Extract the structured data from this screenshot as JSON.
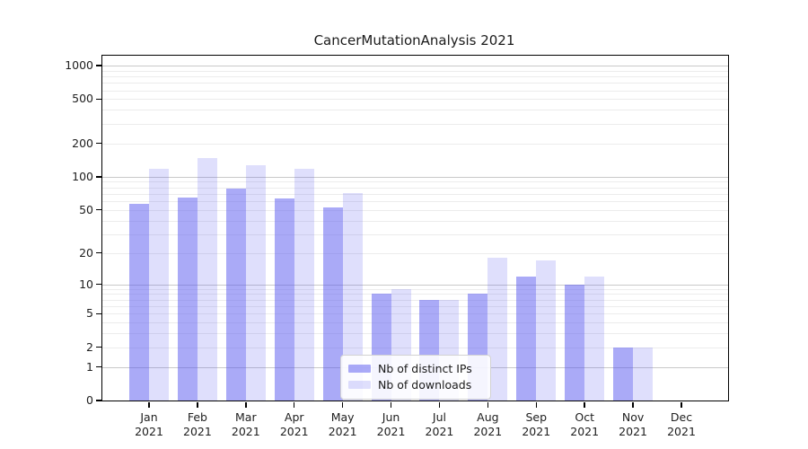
{
  "chart_data": {
    "type": "bar",
    "title": "CancerMutationAnalysis 2021",
    "categories": [
      "Jan",
      "Feb",
      "Mar",
      "Apr",
      "May",
      "Jun",
      "Jul",
      "Aug",
      "Sep",
      "Oct",
      "Nov",
      "Dec"
    ],
    "category_year": "2021",
    "series": [
      {
        "name": "Nb of distinct IPs",
        "color": "rgba(85,85,240,0.50)",
        "swatch_hex": "#ababf8",
        "values": [
          57,
          65,
          78,
          64,
          53,
          8,
          7,
          8,
          12,
          10,
          2,
          0
        ]
      },
      {
        "name": "Nb of downloads",
        "color": "rgba(85,85,240,0.19)",
        "swatch_hex": "#dedef8",
        "values": [
          118,
          147,
          128,
          118,
          71,
          9,
          7,
          18,
          17,
          12,
          2,
          0
        ]
      }
    ],
    "yscale": "log1p",
    "ylim": [
      0,
      1000
    ],
    "y_ticks": [
      0,
      1,
      2,
      5,
      10,
      20,
      50,
      100,
      200,
      500,
      1000
    ],
    "xlabel": "",
    "ylabel": "",
    "grid": true,
    "legend_position": "lower-center-right"
  },
  "colors": {
    "bar_distinct_ips": "#ababf8",
    "bar_downloads": "#dedef8",
    "grid_major": "#c9c9c9",
    "grid_minor": "#ececec",
    "axis_spine": "#000000",
    "tick_text": "#202020"
  }
}
